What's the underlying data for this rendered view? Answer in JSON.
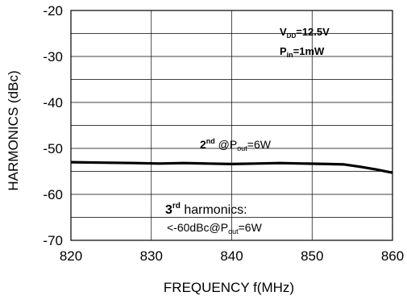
{
  "chart_data": {
    "type": "line",
    "title": "",
    "xlabel": "FREQUENCY f(MHz)",
    "ylabel": "HARMONICS (dBc)",
    "xlim": [
      820,
      860
    ],
    "ylim": [
      -70,
      -20
    ],
    "x_ticks": [
      820,
      830,
      840,
      850,
      860
    ],
    "y_ticks": [
      -20,
      -30,
      -40,
      -50,
      -60,
      -70
    ],
    "x_tick_labels": [
      "820",
      "830",
      "840",
      "850",
      "860"
    ],
    "y_tick_labels": [
      "-20",
      "-30",
      "-40",
      "-50",
      "-60",
      "-70"
    ],
    "grid": true,
    "series": [
      {
        "color": "#000000",
        "x": [
          820,
          824,
          828,
          831,
          834,
          837,
          840,
          843,
          846,
          849,
          852,
          854,
          856,
          858,
          860
        ],
        "y": [
          -53.0,
          -53.1,
          -53.2,
          -53.3,
          -53.2,
          -53.3,
          -53.4,
          -53.3,
          -53.2,
          -53.3,
          -53.4,
          -53.5,
          -54.0,
          -54.6,
          -55.3
        ]
      }
    ],
    "annotations": {
      "condition_vdd": {
        "base": "V",
        "sub": "DD",
        "rest": "=12.5V"
      },
      "condition_pin": {
        "base": "P",
        "sub": "in",
        "rest": "=1mW"
      },
      "second_label": {
        "base": "2",
        "sup": "nd",
        "mid": " @P",
        "sub": "out",
        "rest": "=6W"
      },
      "third_label_line1": {
        "base": "3",
        "sup": "rd",
        "rest": " harmonics:"
      },
      "third_label_line2": {
        "base": "<-60dBc@P",
        "sub": "out",
        "rest": "=6W"
      }
    }
  }
}
